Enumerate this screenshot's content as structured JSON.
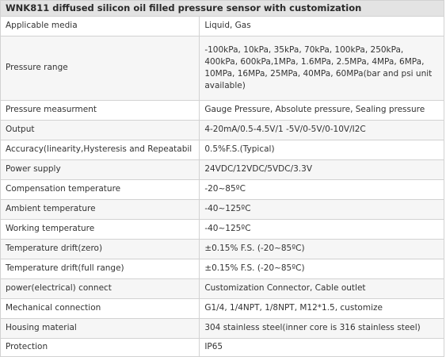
{
  "title": "WNK811 diffused silicon oil filled pressure sensor with customization",
  "rows": [
    {
      "label": "Applicable media",
      "value": "Liquid, Gas"
    },
    {
      "label": "Pressure range",
      "value": "-100kPa, 10kPa, 35kPa, 70kPa, 100kPa, 250kPa, 400kPa, 600kPa,1MPa, 1.6MPa, 2.5MPa, 4MPa, 6MPa, 10MPa, 16MPa, 25MPa, 40MPa, 60MPa(bar and psi unit available)"
    },
    {
      "label": "Pressure measurment",
      "value": "Gauge Pressure, Absolute pressure, Sealing pressure"
    },
    {
      "label": "Output",
      "value": "4-20mA/0.5-4.5V/1 -5V/0-5V/0-10V/I2C"
    },
    {
      "label": "Accuracy(linearity,Hysteresis and Repeatabil",
      "value": "0.5%F.S.(Typical)"
    },
    {
      "label": "Power supply",
      "value": "24VDC/12VDC/5VDC/3.3V"
    },
    {
      "label": "Compensation temperature",
      "value": "-20~85ºC"
    },
    {
      "label": "Ambient temperature",
      "value": "-40~125ºC"
    },
    {
      "label": "Working temperature",
      "value": "-40~125ºC"
    },
    {
      "label": "Temperature drift(zero)",
      "value": "±0.15% F.S. (-20~85ºC)"
    },
    {
      "label": "Temperature drift(full range)",
      "value": "±0.15% F.S. (-20~85ºC)"
    },
    {
      "label": "power(electrical) connect",
      "value": "Customization Connector, Cable outlet"
    },
    {
      "label": "Mechanical connection",
      "value": "G1/4, 1/4NPT, 1/8NPT,  M12*1.5, customize"
    },
    {
      "label": "Housing material",
      "value": "304 stainless steel(inner core is 316 stainless steel)"
    },
    {
      "label": "Protection",
      "value": "IP65"
    }
  ]
}
